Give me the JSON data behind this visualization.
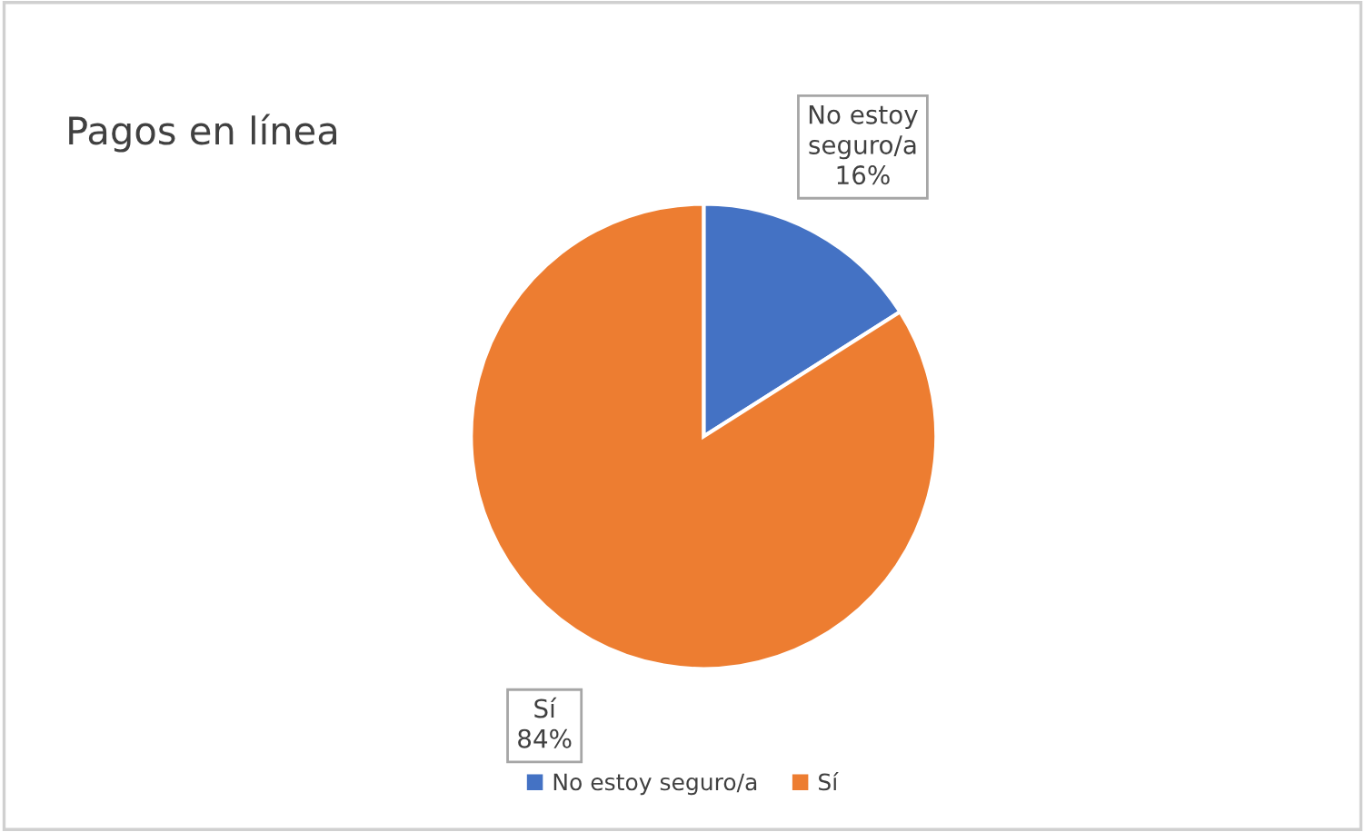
{
  "chart_data": {
    "type": "pie",
    "title": "Pagos en línea",
    "categories": [
      "No estoy seguro/a",
      "Sí"
    ],
    "values": [
      16,
      84
    ],
    "colors": [
      "#4472c4",
      "#ed7d31"
    ],
    "value_labels": [
      "16%",
      "84%"
    ],
    "legend": "bottom"
  }
}
